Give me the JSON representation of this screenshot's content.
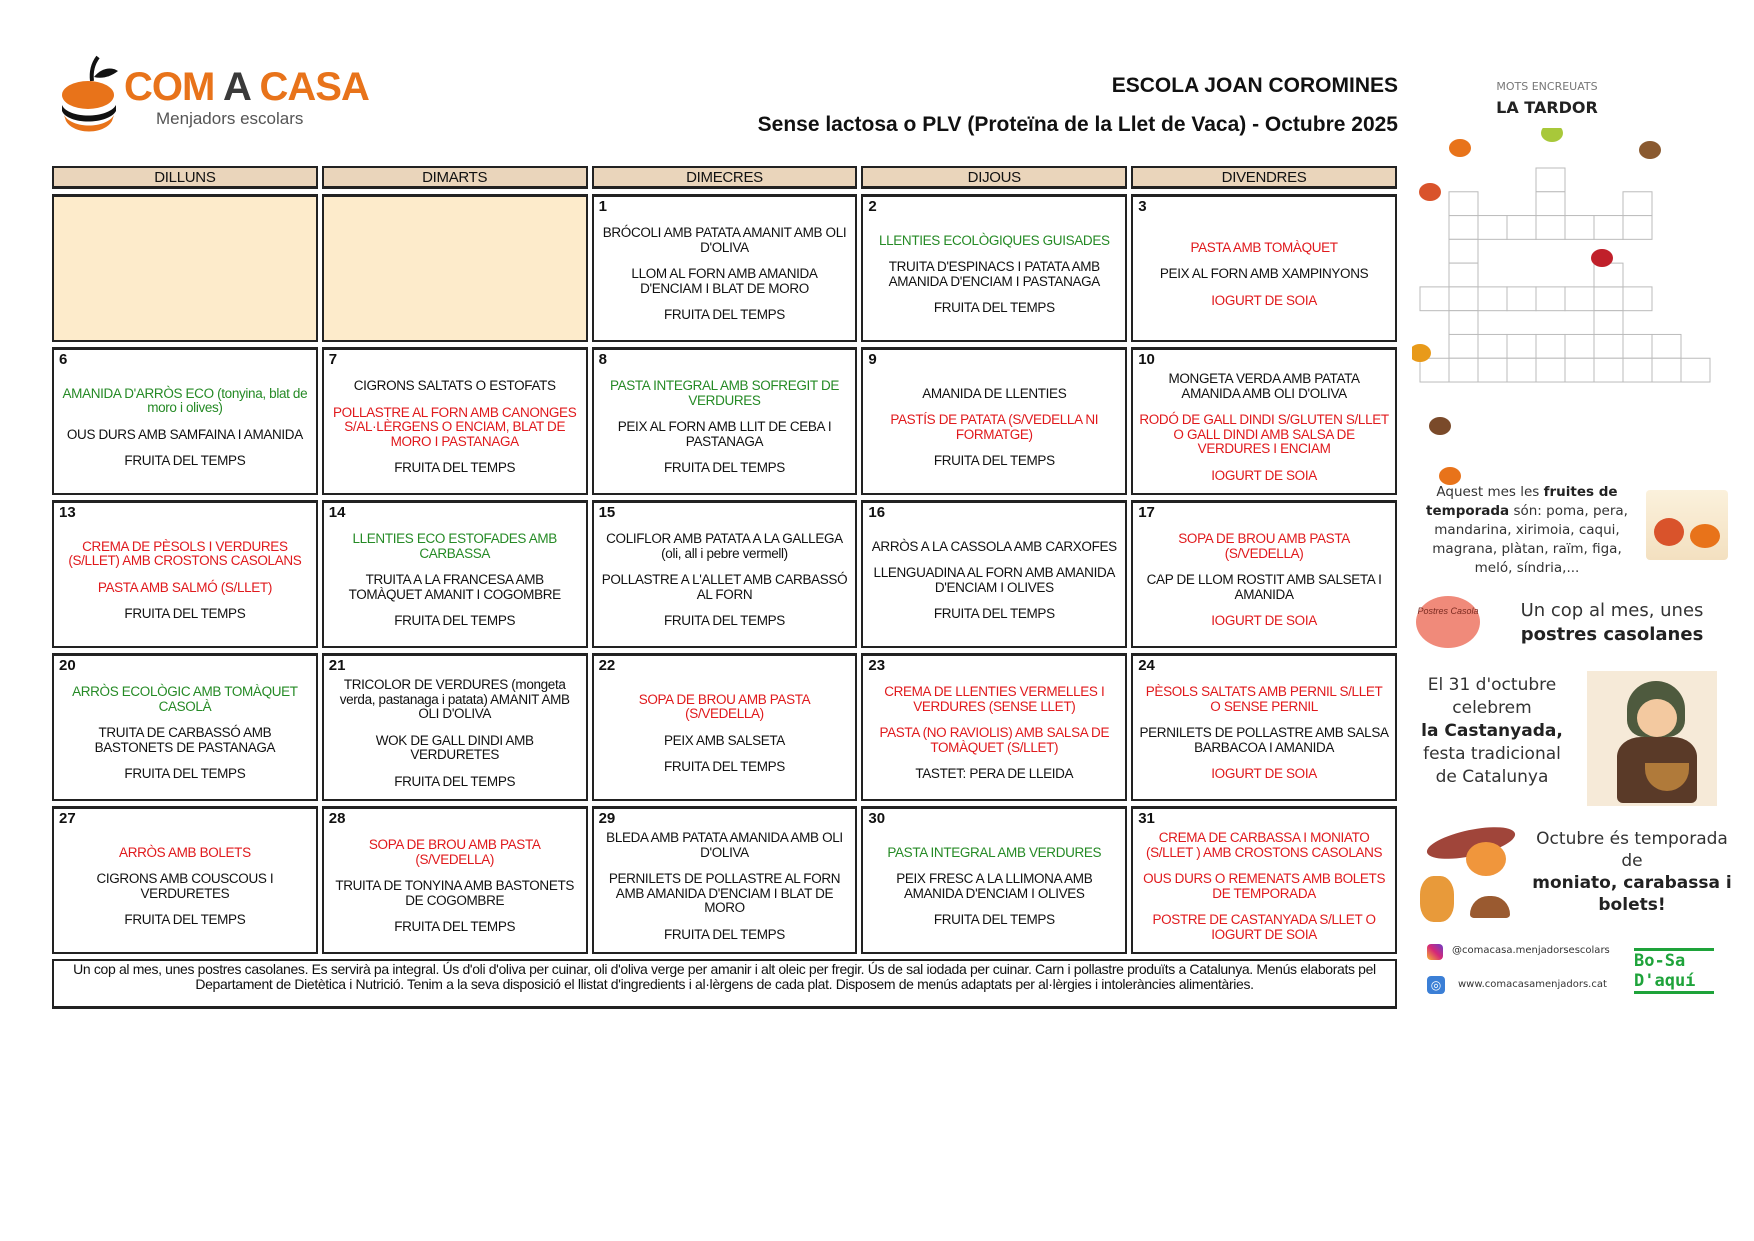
{
  "logo": {
    "brand_part1": "COM",
    "brand_part2": " A ",
    "brand_part3": "CASA",
    "tagline": "Menjadors escolars"
  },
  "header": {
    "title": "ESCOLA JOAN COROMINES",
    "subtitle": "Sense lactosa o PLV (Proteïna de la Llet de Vaca) - Octubre 2025"
  },
  "colors": {
    "red": "#e0191c",
    "green": "#258a25",
    "header_bg": "#ead5bb",
    "empty_bg": "#fdebcb",
    "brand": "#e8731a"
  },
  "weekdays": [
    "DILLUNS",
    "DIMARTS",
    "DIMECRES",
    "DIJOUS",
    "DIVENDRES"
  ],
  "days": [
    {
      "day": "",
      "dishes": []
    },
    {
      "day": "",
      "dishes": []
    },
    {
      "day": "1",
      "dishes": [
        {
          "text": "BRÓCOLI AMB PATATA AMANIT AMB OLI D'OLIVA",
          "color": "black"
        },
        {
          "text": "LLOM AL FORN AMB AMANIDA D'ENCIAM I BLAT DE MORO",
          "color": "black"
        },
        {
          "text": "FRUITA DEL TEMPS",
          "color": "black"
        }
      ]
    },
    {
      "day": "2",
      "dishes": [
        {
          "text": "LLENTIES ECOLÒGIQUES GUISADES",
          "color": "green"
        },
        {
          "text": "TRUITA D'ESPINACS I PATATA AMB AMANIDA D'ENCIAM I PASTANAGA",
          "color": "black"
        },
        {
          "text": "FRUITA DEL TEMPS",
          "color": "black"
        }
      ]
    },
    {
      "day": "3",
      "dishes": [
        {
          "text": "PASTA AMB TOMÀQUET",
          "color": "red"
        },
        {
          "text": "PEIX AL FORN AMB XAMPINYONS",
          "color": "black"
        },
        {
          "text": "IOGURT DE SOIA",
          "color": "red"
        }
      ]
    },
    {
      "day": "6",
      "dishes": [
        {
          "text": "AMANIDA D'ARRÒS ECO (tonyina, blat de moro i olives)",
          "color": "green"
        },
        {
          "text": "OUS DURS AMB SAMFAINA I AMANIDA",
          "color": "black"
        },
        {
          "text": "FRUITA DEL TEMPS",
          "color": "black"
        }
      ]
    },
    {
      "day": "7",
      "dishes": [
        {
          "text": "CIGRONS SALTATS O ESTOFATS",
          "color": "black"
        },
        {
          "text": "POLLASTRE AL FORN AMB CANONGES S/AL·LÈRGENS O ENCIAM, BLAT DE MORO I PASTANAGA",
          "color": "red"
        },
        {
          "text": "FRUITA DEL TEMPS",
          "color": "black"
        }
      ]
    },
    {
      "day": "8",
      "dishes": [
        {
          "text": "PASTA INTEGRAL AMB SOFREGIT DE VERDURES",
          "color": "green"
        },
        {
          "text": "PEIX AL FORN AMB LLIT DE CEBA I PASTANAGA",
          "color": "black"
        },
        {
          "text": "FRUITA DEL TEMPS",
          "color": "black"
        }
      ]
    },
    {
      "day": "9",
      "dishes": [
        {
          "text": "AMANIDA DE LLENTIES",
          "color": "black"
        },
        {
          "text": "PASTÍS DE PATATA (S/VEDELLA NI FORMATGE)",
          "color": "red"
        },
        {
          "text": "FRUITA DEL TEMPS",
          "color": "black"
        }
      ]
    },
    {
      "day": "10",
      "dishes": [
        {
          "text": "MONGETA VERDA AMB PATATA AMANIDA AMB OLI D'OLIVA",
          "color": "black"
        },
        {
          "text": "RODÓ DE GALL DINDI S/GLUTEN S/LLET O GALL DINDI AMB SALSA DE VERDURES I ENCIAM",
          "color": "red"
        },
        {
          "text": "IOGURT DE SOIA",
          "color": "red"
        }
      ]
    },
    {
      "day": "13",
      "dishes": [
        {
          "text": "CREMA DE PÈSOLS I VERDURES (S/LLET) AMB CROSTONS CASOLANS",
          "color": "red"
        },
        {
          "text": "PASTA AMB SALMÓ (S/LLET)",
          "color": "red"
        },
        {
          "text": "FRUITA DEL TEMPS",
          "color": "black"
        }
      ]
    },
    {
      "day": "14",
      "dishes": [
        {
          "text": "LLENTIES ECO ESTOFADES AMB CARBASSA",
          "color": "green"
        },
        {
          "text": "TRUITA A LA FRANCESA AMB TOMÀQUET AMANIT I COGOMBRE",
          "color": "black"
        },
        {
          "text": "FRUITA DEL TEMPS",
          "color": "black"
        }
      ]
    },
    {
      "day": "15",
      "dishes": [
        {
          "text": "COLIFLOR AMB PATATA A LA GALLEGA (oli, all i pebre vermell)",
          "color": "black"
        },
        {
          "text": "POLLASTRE A L'ALLET AMB CARBASSÓ AL FORN",
          "color": "black"
        },
        {
          "text": "FRUITA DEL TEMPS",
          "color": "black"
        }
      ]
    },
    {
      "day": "16",
      "dishes": [
        {
          "text": "ARRÒS A LA CASSOLA AMB CARXOFES",
          "color": "black"
        },
        {
          "text": "LLENGUADINA AL FORN AMB AMANIDA D'ENCIAM I OLIVES",
          "color": "black"
        },
        {
          "text": "FRUITA DEL TEMPS",
          "color": "black"
        }
      ]
    },
    {
      "day": "17",
      "dishes": [
        {
          "text": "SOPA DE BROU AMB PASTA (S/VEDELLA)",
          "color": "red"
        },
        {
          "text": "CAP DE LLOM ROSTIT AMB SALSETA I AMANIDA",
          "color": "black"
        },
        {
          "text": "IOGURT DE SOIA",
          "color": "red"
        }
      ]
    },
    {
      "day": "20",
      "dishes": [
        {
          "text": "ARRÒS ECOLÒGIC AMB TOMÀQUET CASOLÀ",
          "color": "green"
        },
        {
          "text": "TRUITA DE CARBASSÓ AMB BASTONETS DE PASTANAGA",
          "color": "black"
        },
        {
          "text": "FRUITA DEL TEMPS",
          "color": "black"
        }
      ]
    },
    {
      "day": "21",
      "dishes": [
        {
          "text": "TRICOLOR DE VERDURES (mongeta verda, pastanaga i patata) AMANIT AMB OLI D'OLIVA",
          "color": "black"
        },
        {
          "text": "WOK DE GALL DINDI AMB VERDURETES",
          "color": "black"
        },
        {
          "text": "FRUITA DEL TEMPS",
          "color": "black"
        }
      ]
    },
    {
      "day": "22",
      "dishes": [
        {
          "text": "SOPA DE BROU AMB PASTA (S/VEDELLA)",
          "color": "red"
        },
        {
          "text": "PEIX AMB SALSETA",
          "color": "black"
        },
        {
          "text": "FRUITA DEL TEMPS",
          "color": "black"
        }
      ]
    },
    {
      "day": "23",
      "dishes": [
        {
          "text": "CREMA DE LLENTIES VERMELLES I VERDURES (SENSE LLET)",
          "color": "red"
        },
        {
          "text": "PASTA (NO RAVIOLIS) AMB SALSA DE TOMÀQUET (S/LLET)",
          "color": "red"
        },
        {
          "text": "TASTET: PERA DE LLEIDA",
          "color": "black"
        }
      ]
    },
    {
      "day": "24",
      "dishes": [
        {
          "text": "PÈSOLS SALTATS AMB PERNIL S/LLET O SENSE PERNIL",
          "color": "red"
        },
        {
          "text": "PERNILETS DE POLLASTRE AMB SALSA BARBACOA I AMANIDA",
          "color": "black"
        },
        {
          "text": "IOGURT DE SOIA",
          "color": "red"
        }
      ]
    },
    {
      "day": "27",
      "dishes": [
        {
          "text": "ARRÒS AMB BOLETS",
          "color": "red"
        },
        {
          "text": "CIGRONS AMB COUSCOUS I VERDURETES",
          "color": "black"
        },
        {
          "text": "FRUITA DEL TEMPS",
          "color": "black"
        }
      ]
    },
    {
      "day": "28",
      "dishes": [
        {
          "text": "SOPA DE BROU AMB PASTA (S/VEDELLA)",
          "color": "red"
        },
        {
          "text": "TRUITA DE TONYINA AMB BASTONETS DE COGOMBRE",
          "color": "black"
        },
        {
          "text": "FRUITA DEL TEMPS",
          "color": "black"
        }
      ]
    },
    {
      "day": "29",
      "dishes": [
        {
          "text": "BLEDA AMB PATATA AMANIDA AMB OLI D'OLIVA",
          "color": "black"
        },
        {
          "text": "PERNILETS DE POLLASTRE AL FORN AMB AMANIDA D'ENCIAM I BLAT DE MORO",
          "color": "black"
        },
        {
          "text": "FRUITA DEL TEMPS",
          "color": "black"
        }
      ]
    },
    {
      "day": "30",
      "dishes": [
        {
          "text": "PASTA INTEGRAL AMB VERDURES",
          "color": "green"
        },
        {
          "text": "PEIX FRESC A LA LLIMONA AMB AMANIDA D'ENCIAM I OLIVES",
          "color": "black"
        },
        {
          "text": "FRUITA DEL TEMPS",
          "color": "black"
        }
      ]
    },
    {
      "day": "31",
      "dishes": [
        {
          "text": "CREMA DE CARBASSA I MONIATO (S/LLET ) AMB CROSTONS CASOLANS",
          "color": "red"
        },
        {
          "text": "OUS DURS O REMENATS AMB BOLETS DE TEMPORADA",
          "color": "red"
        },
        {
          "text": "POSTRE DE CASTANYADA S/LLET O IOGURT DE SOIA",
          "color": "red"
        }
      ]
    }
  ],
  "footer": "Un cop al mes, unes postres casolanes. Es servirà pa integral. Ús d'oli d'oliva per cuinar, oli d'oliva verge per amanir i alt oleic per fregir. Ús de sal iodada per cuinar. Carn i pollastre produïts a Catalunya. Menús elaborats pel Departament de Dietètica i Nutrició. Tenim a la seva disposició el llistat d'ingredients i al·lèrgens de cada plat. Disposem de menús adaptats per al·lèrgies i intoleràncies alimentàries.",
  "panel": {
    "crossword_kicker": "MOTS ENCREUATS",
    "crossword_title": "LA TARDOR",
    "fruits_a": "Aquest mes les ",
    "fruits_b": "fruites de temporada",
    "fruits_c": " són:  poma, pera, mandarina, xirimoia, caqui, magrana, plàtan, raïm, figa, meló, síndria,...",
    "postres_a": "Un cop al mes, unes",
    "postres_b": "postres casolanes",
    "postres_badge": "Postres Casola",
    "cast_a": "El 31 d'octubre celebrem",
    "cast_b": "la Castanyada,",
    "cast_c": "festa tradicional de Catalunya",
    "season_a": "Octubre és temporada de",
    "season_b": "moniato, carabassa i bolets!",
    "instagram": "@comacasa.menjadorsescolars",
    "website": "www.comacasamenjadors.cat",
    "partner_logo": "Bo-Sa D'aquí"
  }
}
